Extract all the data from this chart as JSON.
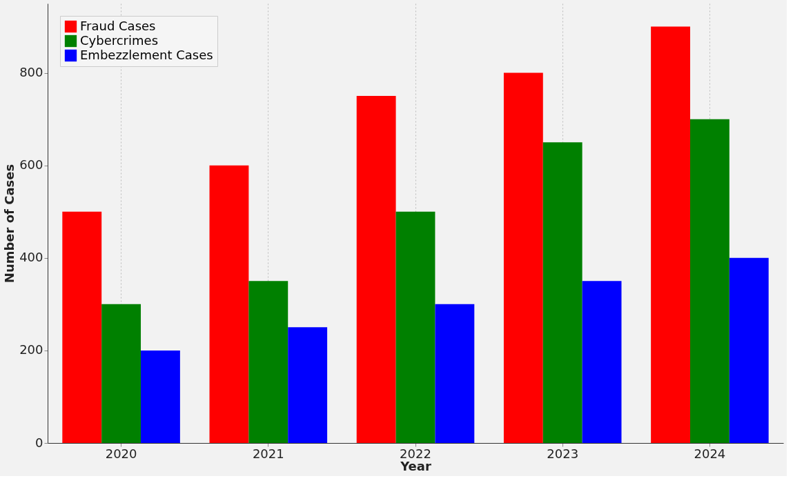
{
  "chart_data": {
    "type": "bar",
    "xlabel": "Year",
    "ylabel": "Number of Cases",
    "categories": [
      "2020",
      "2021",
      "2022",
      "2023",
      "2024"
    ],
    "series": [
      {
        "name": "Fraud Cases",
        "color": "#ff0000",
        "values": [
          500,
          600,
          750,
          800,
          900
        ]
      },
      {
        "name": "Cybercrimes",
        "color": "#008000",
        "values": [
          300,
          350,
          500,
          650,
          700
        ]
      },
      {
        "name": "Embezzlement Cases",
        "color": "#0000ff",
        "values": [
          200,
          250,
          300,
          350,
          400
        ]
      }
    ],
    "ylim": [
      0,
      950
    ],
    "yticks": [
      0,
      200,
      400,
      600,
      800
    ],
    "grid": "x",
    "legend": "top left"
  }
}
